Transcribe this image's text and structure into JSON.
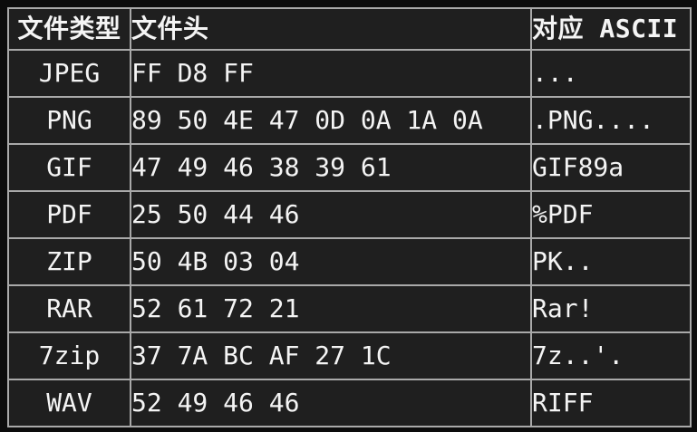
{
  "table": {
    "columns": [
      {
        "label": "文件类型"
      },
      {
        "label": "文件头"
      },
      {
        "label": "对应 ASCII"
      }
    ],
    "rows": [
      {
        "type": "JPEG",
        "header": "FF D8 FF",
        "ascii": "..."
      },
      {
        "type": "PNG",
        "header": "89 50 4E 47 0D 0A 1A 0A",
        "ascii": ".PNG...."
      },
      {
        "type": "GIF",
        "header": "47 49 46 38 39 61",
        "ascii": "GIF89a"
      },
      {
        "type": "PDF",
        "header": "25 50 44 46",
        "ascii": "%PDF"
      },
      {
        "type": "ZIP",
        "header": "50 4B 03 04",
        "ascii": "PK.."
      },
      {
        "type": "RAR",
        "header": "52 61 72 21",
        "ascii": "Rar!"
      },
      {
        "type": "7zip",
        "header": "37 7A BC AF 27 1C",
        "ascii": "7z..'."
      },
      {
        "type": "WAV",
        "header": "52 49 46 46",
        "ascii": "RIFF"
      }
    ]
  },
  "colors": {
    "page_background": "#0c0c0c",
    "cell_background": "#1f1f1f",
    "outer_border": "#e2e2e2",
    "inner_border": "#a9a9a9",
    "text": "#f4f4f4"
  }
}
